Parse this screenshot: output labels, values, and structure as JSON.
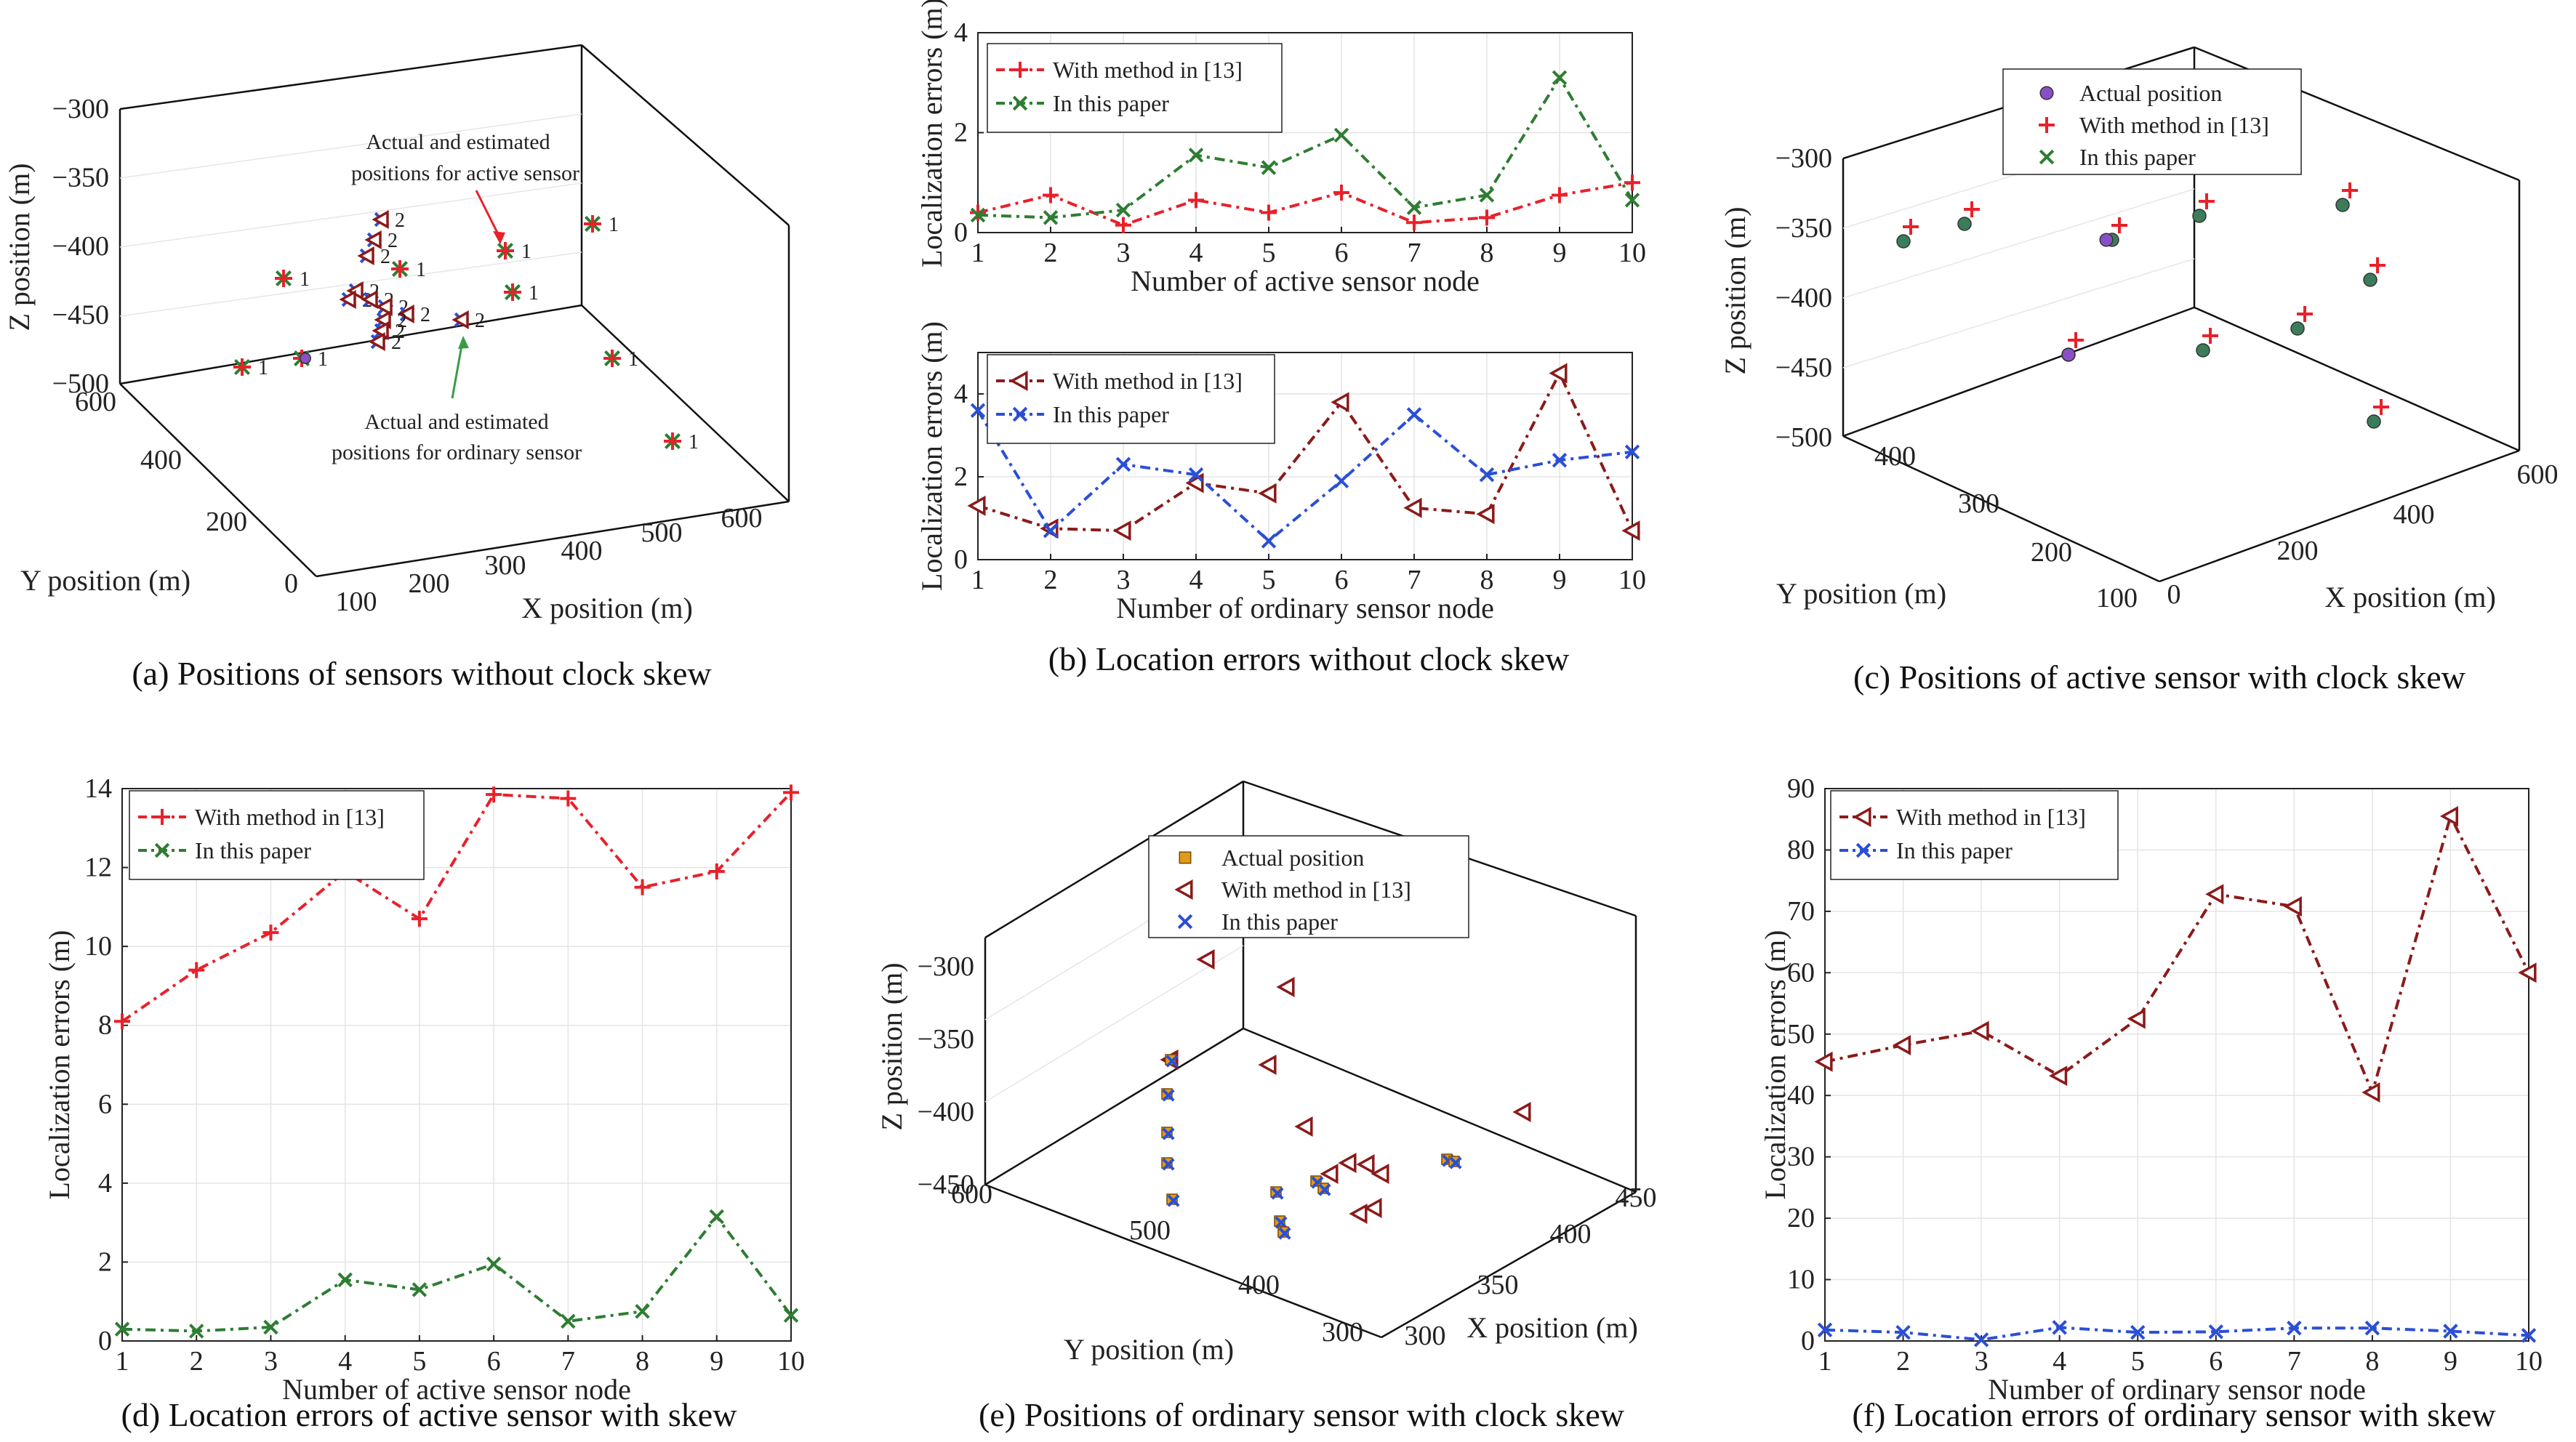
{
  "captions": {
    "a": "(a) Positions of sensors without clock skew",
    "b": "(b) Location errors without clock skew",
    "c": "(c) Positions of active sensor with clock skew",
    "d": "(d) Location errors of active sensor with skew",
    "e": "(e) Positions of ordinary sensor with clock skew",
    "f": "(f) Location errors of ordinary sensor with skew"
  },
  "colors": {
    "red": "#e8212b",
    "green": "#2e7d32",
    "brown": "#8b1a1a",
    "blue": "#2a4fd6",
    "purple": "#8a4fc7",
    "square": "#e09b1a"
  },
  "chart_data": [
    {
      "id": "a",
      "type": "scatter",
      "xlabel": "X position (m)",
      "ylabel": "Y position (m)",
      "zlabel": "Z position (m)",
      "x_ticks": [
        "100",
        "200",
        "300",
        "400",
        "500",
        "600"
      ],
      "y_ticks": [
        "0",
        "200",
        "400",
        "600"
      ],
      "z_ticks": [
        "−300",
        "−350",
        "−400",
        "−450",
        "−500"
      ],
      "annotations": [
        "Actual and estimated",
        "positions for active sensor",
        "Actual and estimated",
        "positions for ordinary sensor"
      ],
      "point_labels": [
        "1",
        "2"
      ]
    },
    {
      "id": "b_top",
      "type": "line",
      "xlabel": "Number of active sensor node",
      "ylabel": "Localization errors (m)",
      "xlim": [
        1,
        10
      ],
      "ylim": [
        0,
        4
      ],
      "x_ticks": [
        "1",
        "2",
        "3",
        "4",
        "5",
        "6",
        "7",
        "8",
        "9",
        "10"
      ],
      "y_ticks": [
        "0",
        "2",
        "4"
      ],
      "categories": [
        1,
        2,
        3,
        4,
        5,
        6,
        7,
        8,
        9,
        10
      ],
      "series": [
        {
          "name": "With method in [13]",
          "values": [
            0.4,
            0.75,
            0.15,
            0.65,
            0.4,
            0.8,
            0.2,
            0.3,
            0.75,
            1.0
          ]
        },
        {
          "name": "In this paper",
          "values": [
            0.35,
            0.3,
            0.45,
            1.55,
            1.3,
            1.95,
            0.5,
            0.75,
            3.1,
            0.65
          ]
        }
      ]
    },
    {
      "id": "b_bottom",
      "type": "line",
      "xlabel": "Number of ordinary sensor node",
      "ylabel": "Localization errors (m)",
      "xlim": [
        1,
        10
      ],
      "ylim": [
        0,
        5
      ],
      "x_ticks": [
        "1",
        "2",
        "3",
        "4",
        "5",
        "6",
        "7",
        "8",
        "9",
        "10"
      ],
      "y_ticks": [
        "0",
        "2",
        "4"
      ],
      "categories": [
        1,
        2,
        3,
        4,
        5,
        6,
        7,
        8,
        9,
        10
      ],
      "series": [
        {
          "name": "With method in [13]",
          "values": [
            1.3,
            0.75,
            0.7,
            1.85,
            1.6,
            3.8,
            1.25,
            1.1,
            4.5,
            0.7
          ]
        },
        {
          "name": "In this paper",
          "values": [
            3.6,
            0.7,
            2.3,
            2.05,
            0.45,
            1.9,
            3.5,
            2.05,
            2.4,
            2.6
          ]
        }
      ]
    },
    {
      "id": "c",
      "type": "scatter",
      "xlabel": "X position (m)",
      "ylabel": "Y position (m)",
      "zlabel": "Z position (m)",
      "x_ticks": [
        "0",
        "200",
        "400",
        "600"
      ],
      "y_ticks": [
        "100",
        "200",
        "300",
        "400"
      ],
      "z_ticks": [
        "−300",
        "−350",
        "−400",
        "−450",
        "−500"
      ],
      "series": [
        {
          "name": "Actual position"
        },
        {
          "name": "With method in [13]"
        },
        {
          "name": "In this paper"
        }
      ]
    },
    {
      "id": "d",
      "type": "line",
      "xlabel": "Number of active sensor node",
      "ylabel": "Localization errors (m)",
      "xlim": [
        1,
        10
      ],
      "ylim": [
        0,
        14
      ],
      "x_ticks": [
        "1",
        "2",
        "3",
        "4",
        "5",
        "6",
        "7",
        "8",
        "9",
        "10"
      ],
      "y_ticks": [
        "0",
        "2",
        "4",
        "6",
        "8",
        "10",
        "12",
        "14"
      ],
      "categories": [
        1,
        2,
        3,
        4,
        5,
        6,
        7,
        8,
        9,
        10
      ],
      "series": [
        {
          "name": "With method in [13]",
          "values": [
            8.1,
            9.4,
            10.35,
            11.9,
            10.7,
            13.85,
            13.75,
            11.5,
            11.9,
            13.9
          ]
        },
        {
          "name": "In this paper",
          "values": [
            0.3,
            0.25,
            0.35,
            1.55,
            1.3,
            1.95,
            0.5,
            0.75,
            3.15,
            0.65
          ]
        }
      ]
    },
    {
      "id": "e",
      "type": "scatter",
      "xlabel": "X position (m)",
      "ylabel": "Y position (m)",
      "zlabel": "Z position (m)",
      "x_ticks": [
        "300",
        "350",
        "400",
        "450"
      ],
      "y_ticks": [
        "300",
        "400",
        "500",
        "600"
      ],
      "z_ticks": [
        "−300",
        "−350",
        "−400",
        "−450"
      ],
      "series": [
        {
          "name": "Actual position"
        },
        {
          "name": "With method in [13]"
        },
        {
          "name": "In this paper"
        }
      ]
    },
    {
      "id": "f",
      "type": "line",
      "xlabel": "Number of ordinary sensor node",
      "ylabel": "Localization errors (m)",
      "xlim": [
        1,
        10
      ],
      "ylim": [
        0,
        90
      ],
      "x_ticks": [
        "1",
        "2",
        "3",
        "4",
        "5",
        "6",
        "7",
        "8",
        "9",
        "10"
      ],
      "y_ticks": [
        "0",
        "10",
        "20",
        "30",
        "40",
        "50",
        "60",
        "70",
        "80",
        "90"
      ],
      "categories": [
        1,
        2,
        3,
        4,
        5,
        6,
        7,
        8,
        9,
        10
      ],
      "series": [
        {
          "name": "With method in [13]",
          "values": [
            45.5,
            48.2,
            50.5,
            43.2,
            52.5,
            72.8,
            70.8,
            40.5,
            85.5,
            60.0
          ]
        },
        {
          "name": "In this paper",
          "values": [
            1.8,
            1.4,
            0.2,
            2.2,
            1.4,
            1.5,
            2.1,
            2.1,
            1.6,
            0.9
          ]
        }
      ]
    }
  ]
}
